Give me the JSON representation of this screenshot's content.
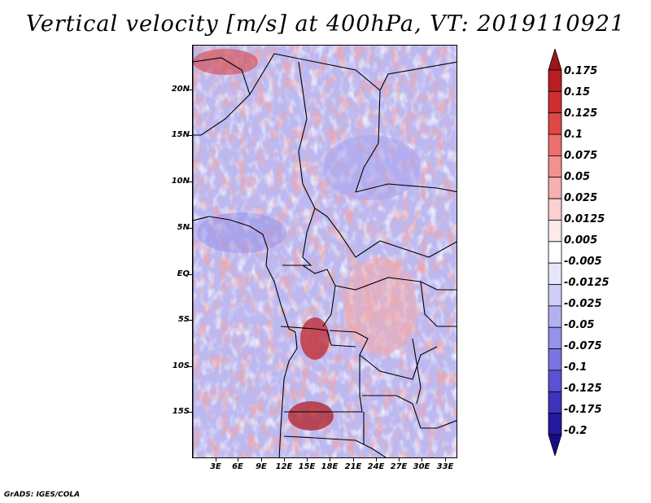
{
  "title": "Vertical velocity [m/s] at 400hPa, VT: 2019110921",
  "footer": "GrADS: IGES/COLA",
  "latitude_labels": [
    "20N",
    "15N",
    "10N",
    "5N",
    "EQ",
    "5S",
    "10S",
    "15S"
  ],
  "longitude_labels": [
    "3E",
    "6E",
    "9E",
    "12E",
    "15E",
    "18E",
    "21E",
    "24E",
    "27E",
    "30E",
    "33E"
  ],
  "colorbar": {
    "labels": [
      "0.175",
      "0.15",
      "0.125",
      "0.1",
      "0.075",
      "0.05",
      "0.025",
      "0.0125",
      "0.005",
      "-0.005",
      "-0.0125",
      "-0.025",
      "-0.05",
      "-0.075",
      "-0.1",
      "-0.125",
      "-0.175",
      "-0.2"
    ],
    "colors": [
      "#a0141c",
      "#b91e24",
      "#cf2e2e",
      "#e04848",
      "#ec6f6f",
      "#f29191",
      "#f6b0b0",
      "#fad0d0",
      "#fde9e9",
      "#ffffff",
      "#e6e6fb",
      "#cfcdf7",
      "#b3b0f2",
      "#9691ea",
      "#7a73e0",
      "#5a52d2",
      "#3c33bd",
      "#2518a0",
      "#180c88"
    ]
  }
}
